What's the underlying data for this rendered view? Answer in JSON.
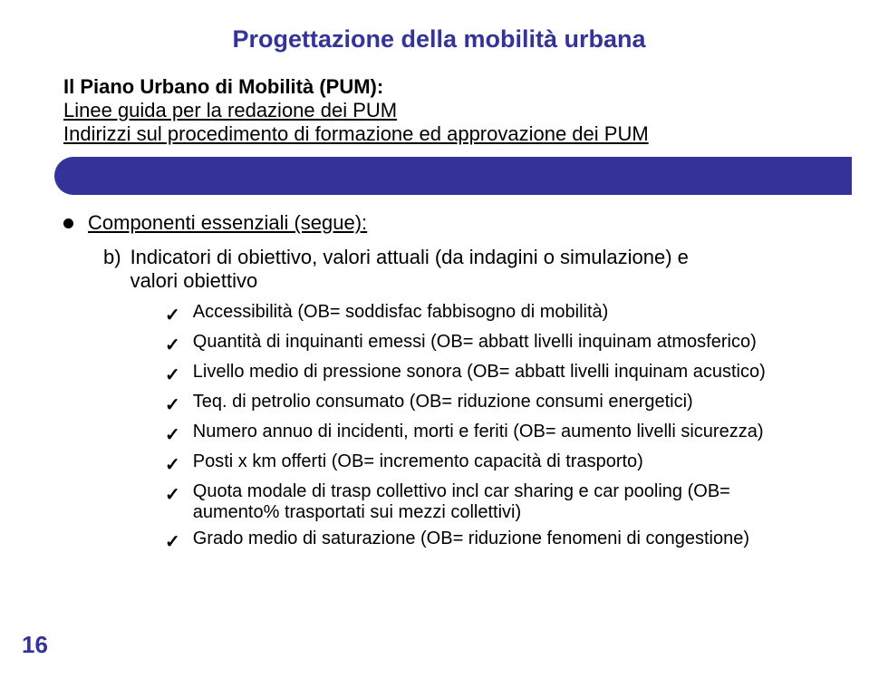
{
  "title": {
    "text": "Progettazione della mobilità urbana",
    "color": "#333399",
    "fontsize": 27
  },
  "subtitle": {
    "line1": "Il Piano Urbano di Mobilità (PUM):",
    "line2": "Linee guida per la redazione dei PUM",
    "line3": "Indirizzi sul procedimento di formazione ed approvazione dei PUM",
    "fontsize": 22,
    "color": "#000000"
  },
  "bar": {
    "color": "#333399",
    "height": 42
  },
  "main_bullet": {
    "text": "Componenti essenziali (segue):",
    "fontsize": 22
  },
  "sub_item": {
    "label": "b)",
    "text_line1": "Indicatori di obiettivo, valori attuali (da indagini o simulazione) e",
    "text_line2": "valori obiettivo",
    "fontsize": 22
  },
  "checklist": {
    "fontsize": 20,
    "items": [
      "Accessibilità (OB= soddisfac fabbisogno di mobilità)",
      "Quantità di inquinanti emessi (OB= abbatt livelli inquinam atmosferico)",
      "Livello medio di pressione sonora (OB= abbatt livelli inquinam acustico)",
      "Teq. di petrolio consumato (OB= riduzione consumi energetici)",
      "Numero annuo di incidenti, morti e feriti (OB= aumento livelli sicurezza)",
      "Posti x km offerti (OB= incremento capacità di trasporto)",
      "Quota modale di trasp collettivo incl car sharing e car pooling (OB= aumento% trasportati sui mezzi collettivi)",
      "Grado medio di saturazione (OB= riduzione fenomeni di congestione)"
    ]
  },
  "page_number": {
    "text": "16",
    "color": "#333399",
    "fontsize": 26
  }
}
